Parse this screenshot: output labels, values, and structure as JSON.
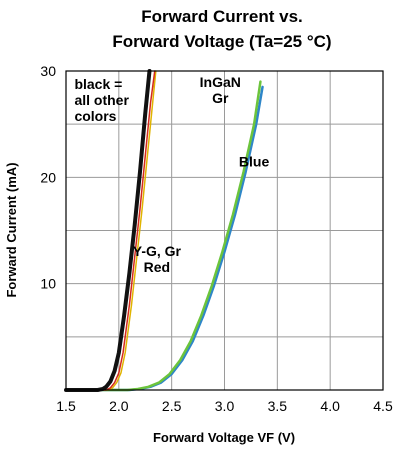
{
  "chart_data": {
    "type": "line",
    "title_lines": [
      "Forward Current vs.",
      "Forward Voltage (Ta=25 °C)"
    ],
    "xlabel": "Forward Voltage VF (V)",
    "ylabel": "Forward Current (mA)",
    "xlim": [
      1.5,
      4.5
    ],
    "ylim": [
      0,
      30
    ],
    "x_ticks": [
      "1.5",
      "2.0",
      "2.5",
      "3.0",
      "3.5",
      "4.0",
      "4.5"
    ],
    "y_ticks": [
      "30",
      "20",
      "10"
    ],
    "grid": true,
    "annotations": [
      {
        "id": "black",
        "lines": [
          "black =",
          "all other",
          "colors"
        ]
      },
      {
        "id": "ingan",
        "lines": [
          "InGaN",
          "Gr"
        ]
      },
      {
        "id": "blue",
        "lines": [
          "Blue"
        ]
      },
      {
        "id": "ygr",
        "lines": [
          "Y-G, Gr",
          "Red"
        ]
      }
    ],
    "series": [
      {
        "id": "black",
        "color": "#111111",
        "width": 4,
        "x": [
          1.5,
          1.8,
          1.85,
          1.88,
          1.92,
          1.96,
          2.0,
          2.05,
          2.1,
          2.15,
          2.2,
          2.25,
          2.29
        ],
        "y": [
          0,
          0,
          0.1,
          0.3,
          0.8,
          1.8,
          3.5,
          7.0,
          11.0,
          15.5,
          20.5,
          26.0,
          30
        ]
      },
      {
        "id": "red",
        "color": "#d42a1e",
        "width": 1.5,
        "x": [
          1.5,
          1.88,
          1.92,
          1.96,
          2.0,
          2.04,
          2.1,
          2.15,
          2.2,
          2.25,
          2.3,
          2.34
        ],
        "y": [
          0,
          0,
          0.2,
          0.7,
          1.6,
          3.5,
          8.0,
          12.5,
          17.0,
          22.0,
          27.0,
          30
        ]
      },
      {
        "id": "ygr",
        "color": "#e0b400",
        "width": 1.5,
        "x": [
          1.5,
          1.9,
          1.94,
          1.98,
          2.02,
          2.06,
          2.12,
          2.17,
          2.22,
          2.27,
          2.32,
          2.35
        ],
        "y": [
          0,
          0,
          0.2,
          0.7,
          1.6,
          3.5,
          8.0,
          12.5,
          17.0,
          22.0,
          27.0,
          30
        ]
      },
      {
        "id": "blue",
        "color": "#2e86c8",
        "width": 2.5,
        "x": [
          1.5,
          2.1,
          2.2,
          2.3,
          2.4,
          2.5,
          2.6,
          2.7,
          2.8,
          2.9,
          3.0,
          3.1,
          3.2,
          3.3,
          3.36
        ],
        "y": [
          0,
          0,
          0.1,
          0.3,
          0.7,
          1.5,
          2.8,
          4.6,
          7.0,
          9.8,
          13.0,
          16.5,
          20.5,
          25.0,
          28.5
        ]
      },
      {
        "id": "green",
        "color": "#6cc43c",
        "width": 2.5,
        "x": [
          1.5,
          2.08,
          2.18,
          2.28,
          2.38,
          2.48,
          2.58,
          2.68,
          2.78,
          2.88,
          2.98,
          3.08,
          3.18,
          3.28,
          3.34
        ],
        "y": [
          0,
          0,
          0.1,
          0.3,
          0.7,
          1.5,
          2.8,
          4.6,
          7.0,
          9.8,
          13.0,
          16.5,
          20.5,
          25.0,
          29.0
        ]
      }
    ]
  }
}
